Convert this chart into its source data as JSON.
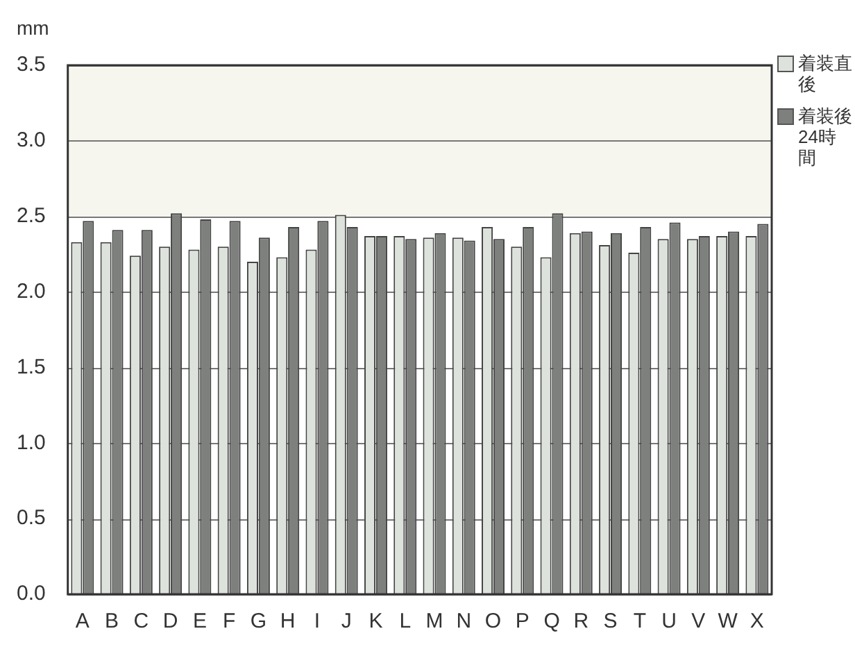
{
  "chart_data": {
    "type": "bar",
    "ylabel": "mm",
    "categories": [
      "A",
      "B",
      "C",
      "D",
      "E",
      "F",
      "G",
      "H",
      "I",
      "J",
      "K",
      "L",
      "M",
      "N",
      "O",
      "P",
      "Q",
      "R",
      "S",
      "T",
      "U",
      "V",
      "W",
      "X"
    ],
    "series": [
      {
        "name": "着装直後",
        "color": "#dde3dc",
        "values": [
          2.33,
          2.33,
          2.24,
          2.3,
          2.28,
          2.3,
          2.2,
          2.23,
          2.28,
          2.51,
          2.37,
          2.37,
          2.36,
          2.36,
          2.43,
          2.3,
          2.23,
          2.39,
          2.31,
          2.26,
          2.35,
          2.35,
          2.37,
          2.37
        ]
      },
      {
        "name": "着装後24時間",
        "color": "#7d807c",
        "values": [
          2.47,
          2.41,
          2.41,
          2.52,
          2.48,
          2.47,
          2.36,
          2.43,
          2.47,
          2.43,
          2.37,
          2.35,
          2.39,
          2.34,
          2.35,
          2.43,
          2.52,
          2.4,
          2.39,
          2.43,
          2.46,
          2.37,
          2.4,
          2.45
        ]
      }
    ],
    "ylim": [
      0,
      3.5
    ],
    "yticks": [
      {
        "value": 0,
        "label": "0.0"
      },
      0.5,
      {
        "value": 1,
        "label": "1.0"
      },
      1.5,
      {
        "value": 2,
        "label": "2.0"
      },
      2.5,
      {
        "value": 3,
        "label": "3.0"
      },
      3.5
    ],
    "bands": [
      {
        "axis": "y",
        "from": 2.5,
        "to": 3.5,
        "color": "#f7f6ee"
      }
    ],
    "grid": "y",
    "legend": "right"
  }
}
